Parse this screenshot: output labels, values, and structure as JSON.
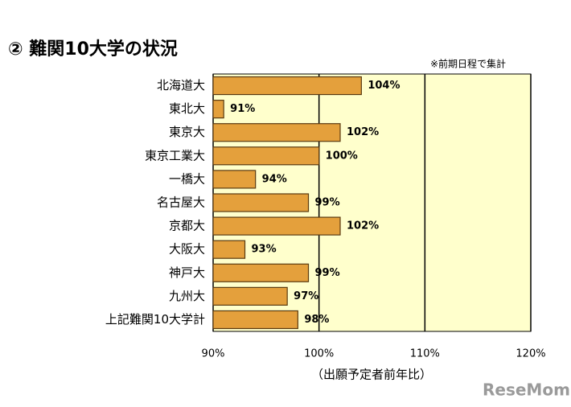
{
  "chart_data": {
    "type": "bar",
    "orientation": "horizontal",
    "title": "② 難関10大学の状況",
    "note": "※前期日程で集計",
    "x_label": "（出願予定者前年比）",
    "watermark": "ReseMom",
    "categories": [
      "北海道大",
      "東北大",
      "東京大",
      "東京工業大",
      "一橋大",
      "名古屋大",
      "京都大",
      "大阪大",
      "神戸大",
      "九州大",
      "上記難関10大学計"
    ],
    "values": [
      104,
      91,
      102,
      100,
      94,
      99,
      102,
      93,
      99,
      97,
      98
    ],
    "value_labels": [
      "104%",
      "91%",
      "102%",
      "100%",
      "94%",
      "99%",
      "102%",
      "93%",
      "99%",
      "97%",
      "98%"
    ],
    "color": "#e4a03c",
    "xlim": [
      90,
      120
    ],
    "xticks": [
      {
        "value": 90,
        "label": "90%"
      },
      {
        "value": 100,
        "label": "100%"
      },
      {
        "value": 110,
        "label": "110%"
      },
      {
        "value": 120,
        "label": "120%"
      }
    ],
    "grid": true
  }
}
